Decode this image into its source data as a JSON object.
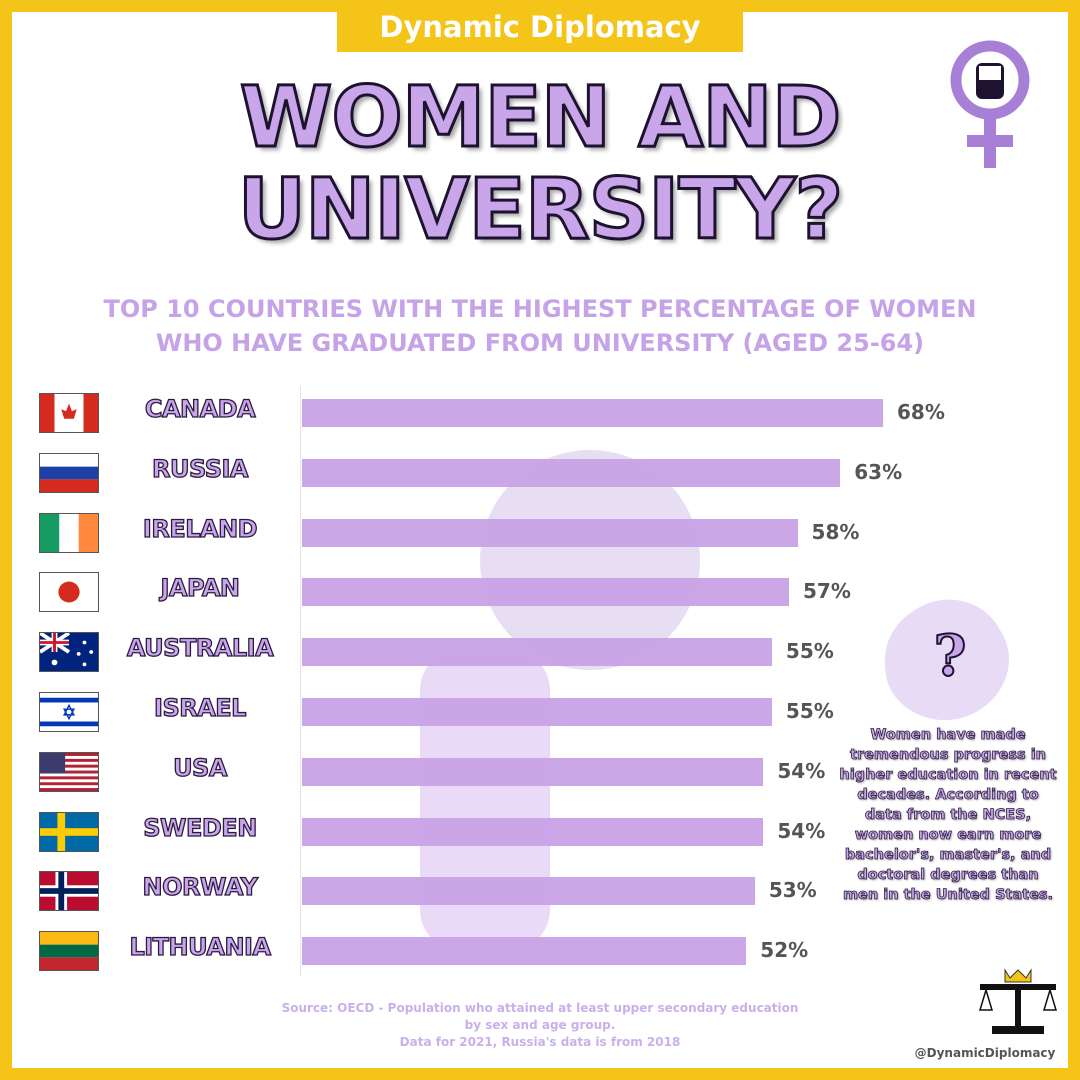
{
  "brand": "Dynamic Diplomacy",
  "title_line1": "WOMEN AND",
  "title_line2": "UNIVERSITY?",
  "subtitle_line1": "TOP 10 COUNTRIES WITH THE HIGHEST PERCENTAGE OF WOMEN",
  "subtitle_line2": "WHO HAVE GRADUATED FROM UNIVERSITY (AGED 25-64)",
  "chart_data": {
    "type": "bar",
    "orientation": "horizontal",
    "categories": [
      "CANADA",
      "RUSSIA",
      "IRELAND",
      "JAPAN",
      "AUSTRALIA",
      "ISRAEL",
      "USA",
      "SWEDEN",
      "NORWAY",
      "LITHUANIA"
    ],
    "values": [
      68,
      63,
      58,
      57,
      55,
      55,
      54,
      54,
      53,
      52
    ],
    "value_labels": [
      "68%",
      "63%",
      "58%",
      "57%",
      "55%",
      "55%",
      "54%",
      "54%",
      "53%",
      "52%"
    ],
    "unit": "%",
    "bar_color": "#c8a2e6",
    "grid": false
  },
  "callout": {
    "icon": "question-mark-blob",
    "mark": "?",
    "text": "Women have made tremendous progress in higher education in recent decades. According to data from the NCES, women now earn more bachelor's, master's, and doctoral degrees than men in the United States."
  },
  "source": {
    "line1": "Source: OECD - Population who attained at least upper secondary education",
    "line2": "by sex and age group.",
    "line3": "Data for 2021, Russia's data is from 2018"
  },
  "handle": "@DynamicDiplomacy",
  "colors": {
    "border": "#f5c419",
    "accent": "#c9a5ea",
    "value_text": "#555555"
  }
}
